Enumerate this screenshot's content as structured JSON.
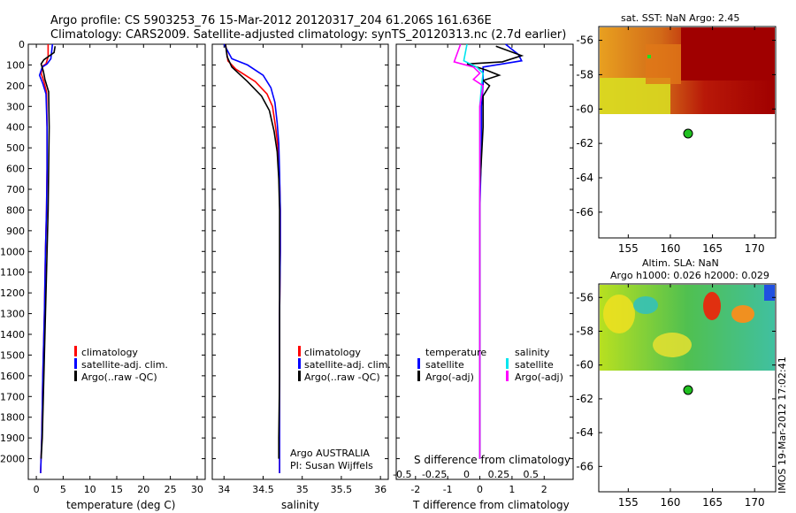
{
  "header": {
    "line1": "Argo profile: CS 5903253_76 15-Mar-2012 20120317_204 61.206S 161.636E",
    "line2": "Climatology: CARS2009. Satellite-adjusted climatology: synTS_20120313.nc (2.7d earlier)"
  },
  "side_label": "IMOS 19-Mar-2012 17:02:41",
  "argo_info": [
    "Argo AUSTRALIA",
    "PI: Susan Wijffels"
  ],
  "colors": {
    "climatology": "#ff0000",
    "satellite_adj": "#0000ff",
    "argo": "#000000",
    "salinity_satellite": "#00e5ee",
    "salinity_argo": "#ff00ff"
  },
  "chart_data": [
    {
      "type": "line",
      "id": "temperature",
      "xlabel": "temperature (deg C)",
      "ylabel": "",
      "xlim": [
        -1.5,
        31.5
      ],
      "ylim": [
        2100,
        0
      ],
      "xticks": [
        0,
        5,
        10,
        15,
        20,
        25,
        30
      ],
      "yticks": [
        0,
        100,
        200,
        300,
        400,
        500,
        600,
        700,
        800,
        900,
        1000,
        1100,
        1200,
        1300,
        1400,
        1500,
        1600,
        1700,
        1800,
        1900,
        2000
      ],
      "legend": [
        "climatology",
        "satellite-adj. clim.",
        "Argo(..raw -QC)"
      ],
      "series": [
        {
          "name": "climatology",
          "color": "#ff0000",
          "x": [
            2.2,
            2.2,
            1.8,
            1.2,
            0.9,
            1.4,
            1.9,
            2.0,
            2.0,
            1.9,
            1.7,
            1.5,
            1.2,
            1.0,
            0.8
          ],
          "y": [
            0,
            60,
            95,
            105,
            140,
            180,
            230,
            400,
            600,
            800,
            1000,
            1300,
            1600,
            1900,
            2070
          ]
        },
        {
          "name": "satellite-adj. clim.",
          "color": "#0000ff",
          "x": [
            3.0,
            2.7,
            2.0,
            1.1,
            0.6,
            1.2,
            1.8,
            2.0,
            2.0,
            1.9,
            1.7,
            1.5,
            1.2,
            1.0,
            0.8
          ],
          "y": [
            0,
            70,
            95,
            110,
            150,
            190,
            240,
            400,
            600,
            800,
            1000,
            1300,
            1600,
            1900,
            2070
          ]
        },
        {
          "name": "Argo(..raw -QC)",
          "color": "#000000",
          "x": [
            3.5,
            3.3,
            1.4,
            0.9,
            1.3,
            1.6,
            2.3,
            2.4,
            2.3,
            2.2,
            2.0,
            1.7,
            1.4,
            1.1,
            0.9
          ],
          "y": [
            10,
            40,
            75,
            95,
            130,
            170,
            230,
            400,
            600,
            800,
            1000,
            1300,
            1600,
            1900,
            2000
          ]
        }
      ]
    },
    {
      "type": "line",
      "id": "salinity",
      "xlabel": "salinity",
      "ylabel": "",
      "xlim": [
        33.85,
        36.1
      ],
      "ylim": [
        2100,
        0
      ],
      "xticks": [
        34,
        34.5,
        35,
        35.5,
        36
      ],
      "legend": [
        "climatology",
        "satellite-adj. clim.",
        "Argo(..raw -QC)"
      ],
      "series": [
        {
          "name": "climatology",
          "color": "#ff0000",
          "x": [
            34.02,
            34.05,
            34.15,
            34.4,
            34.55,
            34.62,
            34.66,
            34.69,
            34.71,
            34.72,
            34.72,
            34.71,
            34.71,
            34.71,
            34.71
          ],
          "y": [
            0,
            80,
            120,
            180,
            240,
            300,
            400,
            500,
            650,
            800,
            1000,
            1300,
            1600,
            1900,
            2070
          ]
        },
        {
          "name": "satellite-adj. clim.",
          "color": "#0000ff",
          "x": [
            34.0,
            34.1,
            34.3,
            34.5,
            34.6,
            34.65,
            34.68,
            34.7,
            34.71,
            34.72,
            34.72,
            34.71,
            34.71,
            34.71,
            34.71
          ],
          "y": [
            0,
            70,
            100,
            150,
            210,
            280,
            380,
            480,
            620,
            800,
            1000,
            1300,
            1600,
            1900,
            2070
          ]
        },
        {
          "name": "Argo(..raw -QC)",
          "color": "#000000",
          "x": [
            34.02,
            34.04,
            34.1,
            34.3,
            34.48,
            34.58,
            34.64,
            34.68,
            34.7,
            34.71,
            34.71,
            34.71,
            34.71,
            34.7,
            34.7
          ],
          "y": [
            0,
            60,
            110,
            180,
            250,
            320,
            420,
            520,
            650,
            800,
            1000,
            1300,
            1600,
            1900,
            2000
          ]
        }
      ]
    },
    {
      "type": "line",
      "id": "difference",
      "xlabel": "T difference from climatology",
      "xlabel_top": "S difference from climatology",
      "xlim": [
        -2.6,
        2.9
      ],
      "ylim": [
        2100,
        0
      ],
      "xticks": [
        -2,
        -1,
        0,
        1,
        2
      ],
      "xticks_top": [
        "-0.5",
        "-0.25",
        "0",
        "0.25",
        "0.5"
      ],
      "legend_temperature_title": "temperature",
      "legend_salinity_title": "salinity",
      "legend_items": [
        "satellite",
        "Argo(-adj)",
        "satellite",
        "Argo(-adj)"
      ],
      "series": [
        {
          "name": "temperature satellite",
          "color": "#0000ff",
          "x": [
            0.8,
            1.2,
            1.3,
            0.1,
            0.1,
            0.1,
            0.05,
            0.05,
            0.0,
            0.0,
            0.0,
            0.0
          ],
          "y": [
            0,
            50,
            80,
            110,
            150,
            200,
            300,
            500,
            800,
            1200,
            1600,
            2000
          ]
        },
        {
          "name": "temperature Argo(-adj)",
          "color": "#000000",
          "x": [
            0.5,
            1.3,
            0.7,
            -0.4,
            0.2,
            0.6,
            0.1,
            0.3,
            0.1,
            0.1,
            0.0,
            0.0,
            0.0,
            0.0
          ],
          "y": [
            10,
            55,
            85,
            95,
            125,
            150,
            175,
            200,
            250,
            400,
            700,
            1100,
            1600,
            2000
          ]
        },
        {
          "name": "salinity satellite",
          "color": "#00e5ee",
          "x": [
            -0.4,
            -0.5,
            -0.1,
            0.1,
            0.05,
            0.0,
            0.0,
            0.0,
            0.0,
            0.0
          ],
          "y": [
            0,
            80,
            110,
            140,
            200,
            300,
            600,
            1000,
            1500,
            2000
          ]
        },
        {
          "name": "salinity Argo(-adj)",
          "color": "#ff00ff",
          "x": [
            -0.6,
            -0.8,
            -0.2,
            0.0,
            -0.2,
            0.1,
            0.0,
            0.0,
            0.0,
            0.0
          ],
          "y": [
            0,
            85,
            110,
            140,
            170,
            200,
            300,
            600,
            1200,
            2000
          ]
        }
      ]
    },
    {
      "type": "heatmap",
      "id": "sst_map",
      "title": "sat. SST: NaN Argo: 2.45",
      "xlim": [
        151.5,
        172.5
      ],
      "ylim": [
        -67.5,
        -55.2
      ],
      "xticks": [
        155,
        160,
        165,
        170
      ],
      "yticks": [
        -56,
        -58,
        -60,
        -62,
        -64,
        -66
      ],
      "argo_position": {
        "lon": 161.6,
        "lat": -61.2
      }
    },
    {
      "type": "heatmap",
      "id": "sla_map",
      "title": "Altim. SLA: NaN",
      "subtitle": "Argo h1000: 0.026 h2000: 0.029",
      "xlim": [
        151.5,
        172.5
      ],
      "ylim": [
        -67.5,
        -55.2
      ],
      "xticks": [
        155,
        160,
        165,
        170
      ],
      "yticks": [
        -56,
        -58,
        -60,
        -62,
        -64,
        -66
      ],
      "argo_position": {
        "lon": 161.6,
        "lat": -61.2
      }
    }
  ]
}
